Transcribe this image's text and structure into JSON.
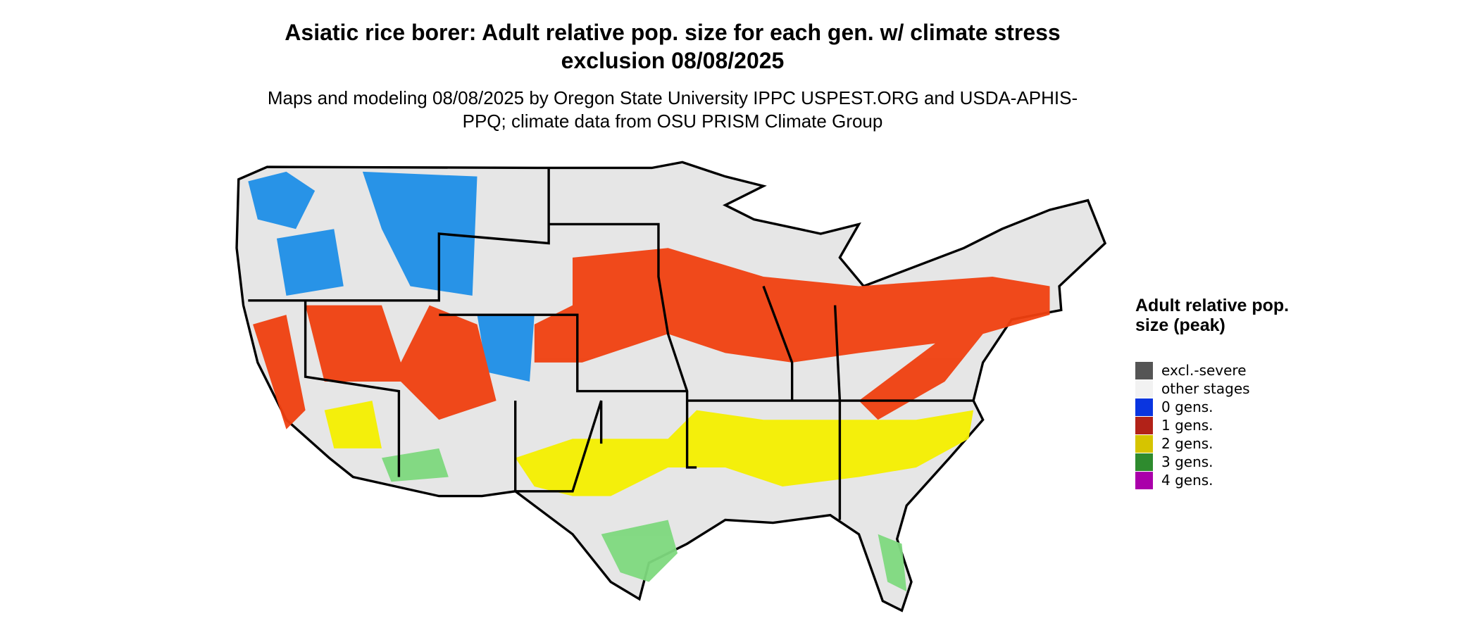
{
  "title": "Asiatic rice borer: Adult relative pop. size for each gen. w/ climate stress exclusion 08/08/2025",
  "subtitle": "Maps and modeling 08/08/2025 by Oregon State University IPPC USPEST.ORG and USDA-APHIS-PPQ; climate data from OSU PRISM Climate Group",
  "legend": {
    "title": "Adult relative pop. size (peak)",
    "items": [
      {
        "label": "excl.-severe",
        "color": "#555555"
      },
      {
        "label": "other stages",
        "color": "#f2f2f2"
      },
      {
        "label": "0 gens.",
        "color": "#0a35e0"
      },
      {
        "label": "1 gens.",
        "color": "#b22218"
      },
      {
        "label": "2 gens.",
        "color": "#d6c400"
      },
      {
        "label": "3 gens.",
        "color": "#2e8b2e"
      },
      {
        "label": "4 gens.",
        "color": "#aa00aa"
      }
    ]
  }
}
